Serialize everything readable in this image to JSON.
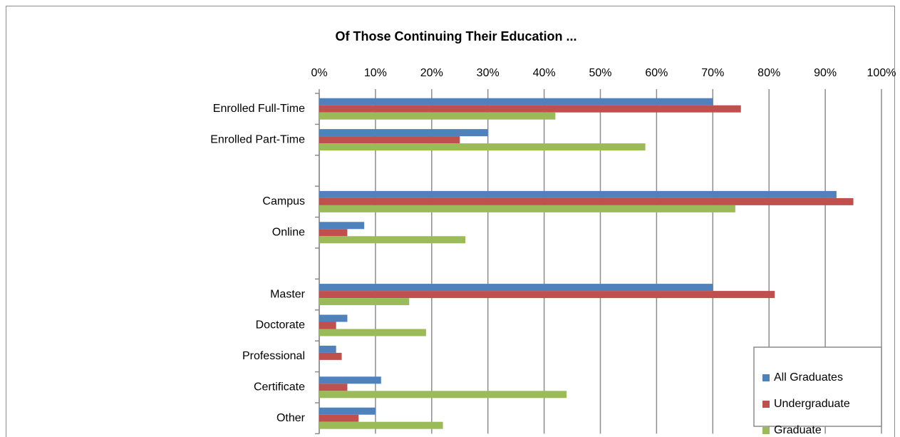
{
  "chart_data": {
    "type": "bar",
    "orientation": "horizontal",
    "title": "Of Those Continuing Their Education ...",
    "categories": [
      "Enrolled Full-Time",
      "Enrolled Part-Time",
      null,
      "Campus",
      "Online",
      null,
      "Master",
      "Doctorate",
      "Professional",
      "Certificate",
      "Other"
    ],
    "series": [
      {
        "name": "All Graduates",
        "color": "#4f81bd",
        "values": [
          70,
          30,
          null,
          92,
          8,
          null,
          70,
          5,
          3,
          11,
          10
        ]
      },
      {
        "name": "Undergraduate",
        "color": "#c0504d",
        "values": [
          75,
          25,
          null,
          95,
          5,
          null,
          81,
          3,
          4,
          5,
          7
        ]
      },
      {
        "name": "Graduate",
        "color": "#9bbb59",
        "values": [
          42,
          58,
          null,
          74,
          26,
          null,
          16,
          19,
          0,
          44,
          22
        ]
      }
    ],
    "xlim": [
      0,
      100
    ],
    "xticks": [
      {
        "value": 0,
        "label": "0%"
      },
      {
        "value": 10,
        "label": "10%"
      },
      {
        "value": 20,
        "label": "20%"
      },
      {
        "value": 30,
        "label": "30%"
      },
      {
        "value": 40,
        "label": "40%"
      },
      {
        "value": 50,
        "label": "50%"
      },
      {
        "value": 60,
        "label": "60%"
      },
      {
        "value": 70,
        "label": "70%"
      },
      {
        "value": 80,
        "label": "80%"
      },
      {
        "value": 90,
        "label": "90%"
      },
      {
        "value": 100,
        "label": "100%"
      }
    ],
    "grid": true,
    "legend": "lower right"
  }
}
